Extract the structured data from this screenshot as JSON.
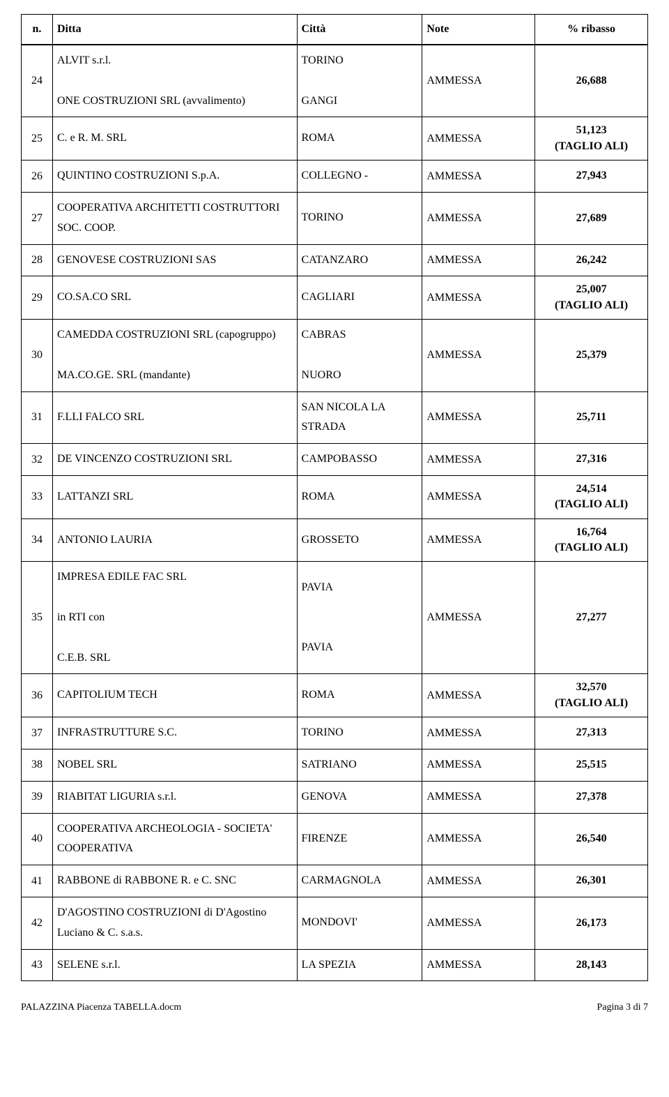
{
  "headers": {
    "n": "n.",
    "ditta": "Ditta",
    "citta": "Città",
    "note": "Note",
    "ribasso": "% ribasso"
  },
  "rows": [
    {
      "n": "24",
      "ditta": "ALVIT s.r.l.\n\nONE COSTRUZIONI SRL (avvalimento)",
      "citta": "TORINO\n\nGANGI",
      "note": "AMMESSA",
      "ribasso": "26,688"
    },
    {
      "n": "25",
      "ditta": "C. e R. M. SRL",
      "citta": "ROMA",
      "note": "AMMESSA",
      "ribasso": "51,123\n(TAGLIO ALI)"
    },
    {
      "n": "26",
      "ditta": "QUINTINO COSTRUZIONI  S.p.A.",
      "citta": "COLLEGNO -",
      "note": "AMMESSA",
      "ribasso": "27,943"
    },
    {
      "n": "27",
      "ditta": "COOPERATIVA ARCHITETTI COSTRUTTORI SOC. COOP.",
      "citta": "TORINO",
      "note": "AMMESSA",
      "ribasso": "27,689"
    },
    {
      "n": "28",
      "ditta": "GENOVESE COSTRUZIONI SAS",
      "citta": "CATANZARO",
      "note": "AMMESSA",
      "ribasso": "26,242"
    },
    {
      "n": "29",
      "ditta": "CO.SA.CO SRL",
      "citta": "CAGLIARI",
      "note": "AMMESSA",
      "ribasso": "25,007\n(TAGLIO ALI)"
    },
    {
      "n": "30",
      "ditta": "CAMEDDA COSTRUZIONI SRL (capogruppo)\n\nMA.CO.GE. SRL (mandante)",
      "citta": "CABRAS\n\nNUORO",
      "note": "AMMESSA",
      "ribasso": "25,379"
    },
    {
      "n": "31",
      "ditta": "F.LLI FALCO SRL",
      "citta": "SAN NICOLA LA STRADA",
      "note": "AMMESSA",
      "ribasso": "25,711"
    },
    {
      "n": "32",
      "ditta": "DE VINCENZO COSTRUZIONI SRL",
      "citta": "CAMPOBASSO",
      "note": "AMMESSA",
      "ribasso": "27,316"
    },
    {
      "n": "33",
      "ditta": "LATTANZI SRL",
      "citta": "ROMA",
      "note": "AMMESSA",
      "ribasso": "24,514\n(TAGLIO ALI)"
    },
    {
      "n": "34",
      "ditta": "ANTONIO LAURIA",
      "citta": "GROSSETO",
      "note": "AMMESSA",
      "ribasso": "16,764\n(TAGLIO ALI)"
    },
    {
      "n": "35",
      "ditta": "IMPRESA EDILE FAC SRL\n\nin RTI con\n\nC.E.B. SRL",
      "citta": "PAVIA\n\n\nPAVIA",
      "note": "AMMESSA",
      "ribasso": "27,277"
    },
    {
      "n": "36",
      "ditta": "CAPITOLIUM TECH",
      "citta": "ROMA",
      "note": "AMMESSA",
      "ribasso": "32,570\n(TAGLIO ALI)"
    },
    {
      "n": "37",
      "ditta": "INFRASTRUTTURE S.C.",
      "citta": "TORINO",
      "note": "AMMESSA",
      "ribasso": "27,313"
    },
    {
      "n": "38",
      "ditta": "NOBEL SRL",
      "citta": "SATRIANO",
      "note": "AMMESSA",
      "ribasso": "25,515"
    },
    {
      "n": "39",
      "ditta": "RIABITAT LIGURIA s.r.l.",
      "citta": "GENOVA",
      "note": "AMMESSA",
      "ribasso": "27,378"
    },
    {
      "n": "40",
      "ditta": "COOPERATIVA ARCHEOLOGIA - SOCIETA' COOPERATIVA",
      "citta": "FIRENZE",
      "note": "AMMESSA",
      "ribasso": "26,540"
    },
    {
      "n": "41",
      "ditta": "RABBONE di RABBONE R. e C. SNC",
      "citta": "CARMAGNOLA",
      "note": "AMMESSA",
      "ribasso": "26,301"
    },
    {
      "n": "42",
      "ditta": "D'AGOSTINO COSTRUZIONI di D'Agostino Luciano & C. s.a.s.",
      "citta": "MONDOVI'",
      "note": "AMMESSA",
      "ribasso": "26,173"
    },
    {
      "n": "43",
      "ditta": "SELENE s.r.l.",
      "citta": "LA SPEZIA",
      "note": "AMMESSA",
      "ribasso": "28,143"
    }
  ],
  "footer": {
    "left": "PALAZZINA Piacenza TABELLA.docm",
    "right": "Pagina 3 di 7"
  }
}
